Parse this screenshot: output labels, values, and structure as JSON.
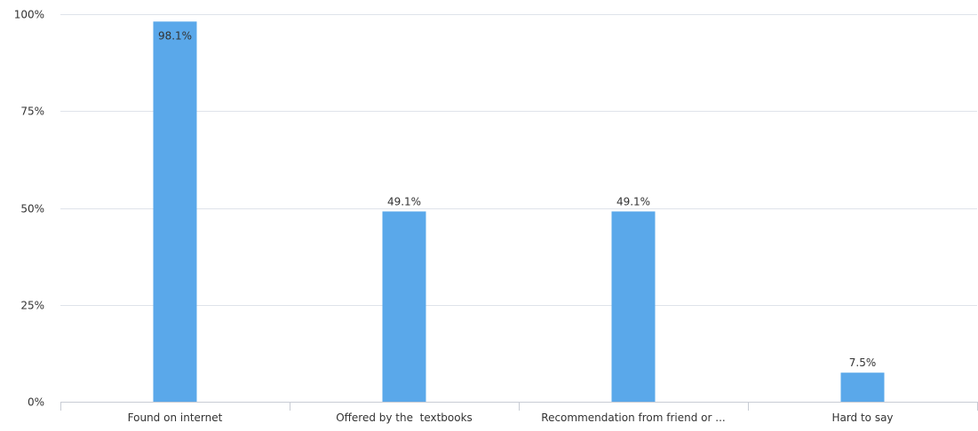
{
  "chart_data": {
    "type": "bar",
    "categories": [
      "Found on internet",
      "Offered by the  textbooks",
      "Recommendation from friend or ...",
      "Hard to say"
    ],
    "values": [
      98.1,
      49.1,
      49.1,
      7.5
    ],
    "data_labels": [
      "98.1%",
      "49.1%",
      "49.1%",
      "7.5%"
    ],
    "y_ticks": [
      "0%",
      "25%",
      "50%",
      "75%",
      "100%"
    ],
    "ylim": [
      0,
      100
    ],
    "grid": true,
    "colors": {
      "bar": "#5aa8ea",
      "grid": "#dfe3ea",
      "axis": "#c8ccd4"
    }
  }
}
